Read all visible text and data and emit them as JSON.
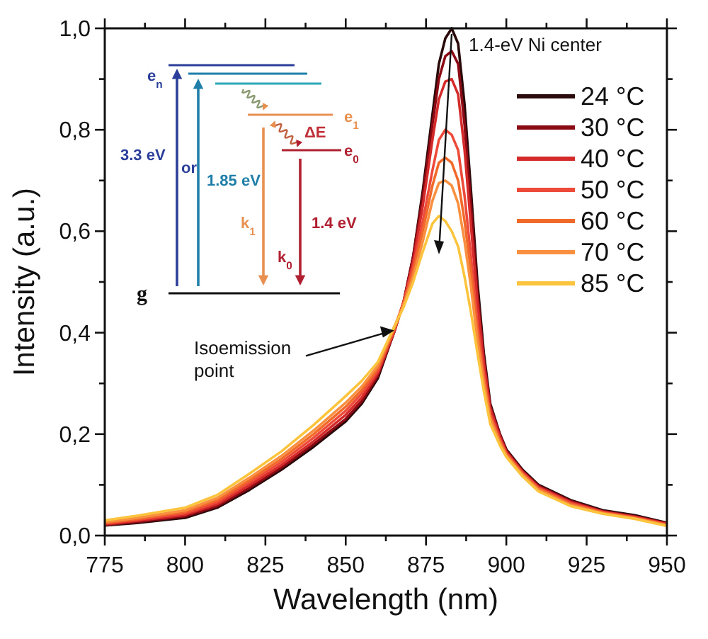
{
  "chart_data": {
    "type": "line",
    "xlabel": "Wavelength (nm)",
    "ylabel": "Intensity (a.u.)",
    "x": [
      775,
      785,
      800,
      810,
      820,
      830,
      840,
      850,
      855,
      860,
      865,
      868,
      871,
      874,
      877,
      879,
      881,
      883,
      885,
      887,
      889,
      891,
      893,
      895,
      898,
      900,
      905,
      910,
      920,
      930,
      940,
      950
    ],
    "series": [
      {
        "name": "24 °C",
        "color": "#2a0a0a",
        "values": [
          0.02,
          0.025,
          0.035,
          0.055,
          0.09,
          0.13,
          0.175,
          0.225,
          0.26,
          0.31,
          0.4,
          0.46,
          0.55,
          0.68,
          0.83,
          0.93,
          0.98,
          1.0,
          0.97,
          0.85,
          0.68,
          0.5,
          0.36,
          0.26,
          0.2,
          0.17,
          0.13,
          0.1,
          0.07,
          0.05,
          0.04,
          0.025
        ]
      },
      {
        "name": "30 °C",
        "color": "#8b0a14",
        "values": [
          0.021,
          0.027,
          0.038,
          0.058,
          0.094,
          0.134,
          0.18,
          0.23,
          0.265,
          0.315,
          0.4,
          0.46,
          0.55,
          0.67,
          0.81,
          0.9,
          0.945,
          0.955,
          0.93,
          0.81,
          0.65,
          0.48,
          0.35,
          0.255,
          0.2,
          0.168,
          0.128,
          0.098,
          0.068,
          0.048,
          0.038,
          0.024
        ]
      },
      {
        "name": "40 °C",
        "color": "#d42a2a",
        "values": [
          0.022,
          0.029,
          0.041,
          0.062,
          0.099,
          0.139,
          0.186,
          0.238,
          0.272,
          0.32,
          0.4,
          0.46,
          0.54,
          0.65,
          0.78,
          0.86,
          0.895,
          0.9,
          0.87,
          0.76,
          0.61,
          0.46,
          0.34,
          0.25,
          0.195,
          0.165,
          0.126,
          0.096,
          0.066,
          0.047,
          0.037,
          0.023
        ]
      },
      {
        "name": "50 °C",
        "color": "#ee4a3a",
        "values": [
          0.024,
          0.031,
          0.044,
          0.066,
          0.104,
          0.145,
          0.193,
          0.246,
          0.28,
          0.325,
          0.405,
          0.46,
          0.53,
          0.62,
          0.72,
          0.78,
          0.8,
          0.79,
          0.76,
          0.67,
          0.55,
          0.42,
          0.32,
          0.24,
          0.19,
          0.162,
          0.124,
          0.094,
          0.064,
          0.046,
          0.036,
          0.022
        ]
      },
      {
        "name": "60 °C",
        "color": "#f26a2a",
        "values": [
          0.025,
          0.033,
          0.047,
          0.07,
          0.109,
          0.151,
          0.2,
          0.254,
          0.287,
          0.33,
          0.405,
          0.455,
          0.52,
          0.6,
          0.69,
          0.735,
          0.745,
          0.735,
          0.7,
          0.62,
          0.52,
          0.4,
          0.31,
          0.235,
          0.186,
          0.16,
          0.122,
          0.092,
          0.062,
          0.045,
          0.035,
          0.021
        ]
      },
      {
        "name": "70 °C",
        "color": "#f89040",
        "values": [
          0.027,
          0.035,
          0.05,
          0.074,
          0.114,
          0.157,
          0.207,
          0.262,
          0.294,
          0.335,
          0.41,
          0.455,
          0.51,
          0.58,
          0.66,
          0.695,
          0.7,
          0.69,
          0.655,
          0.58,
          0.49,
          0.385,
          0.3,
          0.23,
          0.183,
          0.158,
          0.12,
          0.09,
          0.06,
          0.044,
          0.034,
          0.02
        ]
      },
      {
        "name": "85 °C",
        "color": "#fcc43c",
        "values": [
          0.03,
          0.039,
          0.055,
          0.08,
          0.122,
          0.166,
          0.218,
          0.275,
          0.305,
          0.342,
          0.41,
          0.45,
          0.5,
          0.56,
          0.615,
          0.63,
          0.62,
          0.6,
          0.57,
          0.51,
          0.44,
          0.36,
          0.285,
          0.22,
          0.178,
          0.155,
          0.117,
          0.087,
          0.058,
          0.043,
          0.033,
          0.019
        ]
      }
    ],
    "xlim": [
      775,
      950
    ],
    "xticks": [
      775,
      {
        "value": 787.5,
        "label": null
      },
      800,
      {
        "value": 812.5,
        "label": null
      },
      825,
      {
        "value": 837.5,
        "label": null
      },
      850,
      {
        "value": 862.5,
        "label": null
      },
      875,
      {
        "value": 887.5,
        "label": null
      },
      900,
      {
        "value": 912.5,
        "label": null
      },
      925,
      {
        "value": 937.5,
        "label": null
      },
      950
    ],
    "ylim": [
      0,
      1
    ],
    "yticks": [
      {
        "value": 0,
        "label": "0,0"
      },
      {
        "value": 0.1,
        "label": null
      },
      {
        "value": 0.2,
        "label": "0,2"
      },
      {
        "value": 0.3,
        "label": null
      },
      {
        "value": 0.4,
        "label": "0,4"
      },
      {
        "value": 0.5,
        "label": null
      },
      {
        "value": 0.6,
        "label": "0,6"
      },
      {
        "value": 0.7,
        "label": null
      },
      {
        "value": 0.8,
        "label": "0,8"
      },
      {
        "value": 0.9,
        "label": null
      },
      {
        "value": 1,
        "label": "1,0"
      }
    ],
    "grid": false,
    "legend": "right",
    "marker": "none",
    "line_style": "solid",
    "annotations": [
      {
        "text": "1.4-eV Ni center",
        "x": 883,
        "y": 1.0
      },
      {
        "text": "Isoemission point",
        "x": 866,
        "y": 0.41
      },
      "e$_{n}$",
      "e$_{1}$",
      "e$_{0}$",
      "3.3 eV",
      "or",
      "1.85 eV",
      "ΔE",
      "k$_{1}$",
      "k$_{0}$",
      "1.4 eV",
      "g"
    ]
  }
}
